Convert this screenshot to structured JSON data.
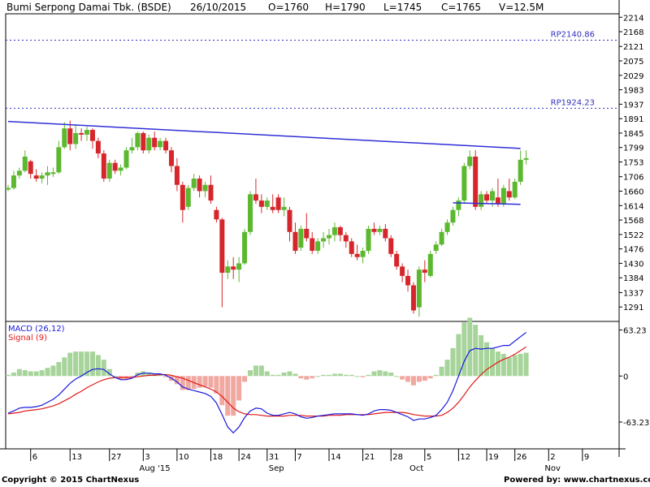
{
  "header": {
    "title": "Bumi Serpong Damai Tbk. (BSDE)",
    "date": "26/10/2015",
    "open": "O=1760",
    "high": "H=1790",
    "low": "L=1745",
    "close": "C=1765",
    "volume": "V=12.5M"
  },
  "footer": {
    "copyright": "Copyright © 2015 ChartNexus",
    "powered": "Powered by: www.chartnexus.com"
  },
  "colors": {
    "up": "#5cb82f",
    "down": "#d6262b",
    "trendline": "#2f2fd6",
    "macd": "#1a1ae0",
    "signal": "#e01a1a",
    "hist_up": "#a7d49a",
    "hist_down": "#f0a8a0",
    "ref_line": "#3030c0"
  },
  "chart_data": [
    {
      "type": "candlestick",
      "title": "Bumi Serpong Damai Tbk. (BSDE)",
      "y_ticks": [
        2214,
        2168,
        2121,
        2075,
        2029,
        1983,
        1937,
        1891,
        1845,
        1799,
        1753,
        1706,
        1660,
        1614,
        1568,
        1522,
        1476,
        1430,
        1384,
        1337,
        1291
      ],
      "ylim": [
        1245,
        2225
      ],
      "ref_lines": [
        {
          "label": "RP2140.86",
          "value": 2140.86
        },
        {
          "label": "RP1924.23",
          "value": 1924.23
        }
      ],
      "trendlines": [
        {
          "from": [
            0,
            1882
          ],
          "to": [
            91,
            1796
          ]
        },
        {
          "from": [
            79,
            1623
          ],
          "to": [
            91,
            1618
          ]
        }
      ],
      "x_ticks": [
        {
          "label": "6",
          "index": 4
        },
        {
          "label": "13",
          "index": 11
        },
        {
          "label": "27",
          "index": 18
        },
        {
          "label": "3",
          "index": 24
        },
        {
          "label": "10",
          "index": 30
        },
        {
          "label": "18",
          "index": 36
        },
        {
          "label": "24",
          "index": 41
        },
        {
          "label": "31",
          "index": 46
        },
        {
          "label": "7",
          "index": 51
        },
        {
          "label": "14",
          "index": 57
        },
        {
          "label": "21",
          "index": 63
        },
        {
          "label": "28",
          "index": 68
        },
        {
          "label": "5",
          "index": 74
        },
        {
          "label": "12",
          "index": 80
        },
        {
          "label": "19",
          "index": 85
        },
        {
          "label": "26",
          "index": 90
        },
        {
          "label": "2",
          "index": 96
        },
        {
          "label": "9",
          "index": 102
        }
      ],
      "month_labels": [
        {
          "label": "Aug '15",
          "index": 23
        },
        {
          "label": "Sep",
          "index": 46
        },
        {
          "label": "Oct",
          "index": 71
        },
        {
          "label": "Nov",
          "index": 95
        }
      ],
      "candles": [
        [
          1665,
          1680,
          1660,
          1670
        ],
        [
          1670,
          1725,
          1665,
          1710
        ],
        [
          1710,
          1735,
          1700,
          1725
        ],
        [
          1725,
          1790,
          1720,
          1770
        ],
        [
          1755,
          1760,
          1700,
          1715
        ],
        [
          1710,
          1730,
          1690,
          1700
        ],
        [
          1700,
          1720,
          1685,
          1710
        ],
        [
          1710,
          1740,
          1680,
          1720
        ],
        [
          1715,
          1735,
          1705,
          1720
        ],
        [
          1720,
          1820,
          1715,
          1800
        ],
        [
          1800,
          1880,
          1795,
          1860
        ],
        [
          1860,
          1885,
          1790,
          1810
        ],
        [
          1810,
          1870,
          1795,
          1845
        ],
        [
          1845,
          1860,
          1820,
          1840
        ],
        [
          1840,
          1865,
          1820,
          1855
        ],
        [
          1855,
          1860,
          1795,
          1820
        ],
        [
          1820,
          1830,
          1765,
          1780
        ],
        [
          1780,
          1790,
          1690,
          1700
        ],
        [
          1700,
          1760,
          1690,
          1750
        ],
        [
          1750,
          1760,
          1715,
          1725
        ],
        [
          1725,
          1745,
          1710,
          1735
        ],
        [
          1735,
          1800,
          1730,
          1790
        ],
        [
          1790,
          1830,
          1780,
          1800
        ],
        [
          1800,
          1850,
          1790,
          1845
        ],
        [
          1845,
          1850,
          1780,
          1790
        ],
        [
          1790,
          1840,
          1780,
          1830
        ],
        [
          1830,
          1850,
          1790,
          1800
        ],
        [
          1800,
          1830,
          1790,
          1820
        ],
        [
          1820,
          1830,
          1780,
          1790
        ],
        [
          1790,
          1800,
          1720,
          1740
        ],
        [
          1740,
          1765,
          1660,
          1680
        ],
        [
          1680,
          1690,
          1560,
          1600
        ],
        [
          1610,
          1680,
          1600,
          1670
        ],
        [
          1670,
          1715,
          1660,
          1700
        ],
        [
          1700,
          1710,
          1640,
          1660
        ],
        [
          1660,
          1690,
          1640,
          1680
        ],
        [
          1680,
          1710,
          1620,
          1630
        ],
        [
          1600,
          1610,
          1560,
          1570
        ],
        [
          1570,
          1575,
          1290,
          1400
        ],
        [
          1400,
          1440,
          1380,
          1420
        ],
        [
          1420,
          1450,
          1380,
          1410
        ],
        [
          1410,
          1450,
          1370,
          1430
        ],
        [
          1430,
          1540,
          1425,
          1530
        ],
        [
          1530,
          1660,
          1520,
          1650
        ],
        [
          1650,
          1700,
          1620,
          1630
        ],
        [
          1630,
          1650,
          1590,
          1610
        ],
        [
          1610,
          1640,
          1600,
          1630
        ],
        [
          1610,
          1650,
          1590,
          1600
        ],
        [
          1640,
          1650,
          1590,
          1600
        ],
        [
          1600,
          1640,
          1580,
          1610
        ],
        [
          1600,
          1610,
          1500,
          1530
        ],
        [
          1530,
          1560,
          1460,
          1470
        ],
        [
          1480,
          1550,
          1470,
          1540
        ],
        [
          1540,
          1590,
          1500,
          1510
        ],
        [
          1510,
          1530,
          1460,
          1470
        ],
        [
          1470,
          1510,
          1460,
          1500
        ],
        [
          1500,
          1530,
          1480,
          1510
        ],
        [
          1510,
          1540,
          1490,
          1520
        ],
        [
          1520,
          1560,
          1500,
          1545
        ],
        [
          1545,
          1550,
          1500,
          1520
        ],
        [
          1520,
          1530,
          1480,
          1500
        ],
        [
          1500,
          1510,
          1450,
          1460
        ],
        [
          1460,
          1490,
          1440,
          1450
        ],
        [
          1450,
          1480,
          1430,
          1470
        ],
        [
          1470,
          1550,
          1460,
          1540
        ],
        [
          1540,
          1560,
          1520,
          1530
        ],
        [
          1530,
          1550,
          1520,
          1540
        ],
        [
          1540,
          1555,
          1500,
          1510
        ],
        [
          1510,
          1520,
          1450,
          1460
        ],
        [
          1460,
          1470,
          1410,
          1420
        ],
        [
          1420,
          1430,
          1370,
          1390
        ],
        [
          1390,
          1410,
          1340,
          1360
        ],
        [
          1360,
          1370,
          1270,
          1280
        ],
        [
          1290,
          1420,
          1260,
          1410
        ],
        [
          1410,
          1440,
          1370,
          1400
        ],
        [
          1390,
          1470,
          1385,
          1460
        ],
        [
          1470,
          1500,
          1460,
          1490
        ],
        [
          1490,
          1540,
          1485,
          1530
        ],
        [
          1530,
          1570,
          1520,
          1560
        ],
        [
          1560,
          1610,
          1550,
          1600
        ],
        [
          1600,
          1640,
          1580,
          1630
        ],
        [
          1630,
          1750,
          1620,
          1740
        ],
        [
          1740,
          1790,
          1730,
          1770
        ],
        [
          1770,
          1790,
          1600,
          1610
        ],
        [
          1610,
          1660,
          1600,
          1650
        ],
        [
          1650,
          1660,
          1620,
          1630
        ],
        [
          1630,
          1670,
          1610,
          1660
        ],
        [
          1640,
          1700,
          1610,
          1620
        ],
        [
          1620,
          1680,
          1610,
          1670
        ],
        [
          1660,
          1700,
          1630,
          1640
        ],
        [
          1640,
          1700,
          1635,
          1690
        ],
        [
          1690,
          1790,
          1680,
          1760
        ],
        [
          1760,
          1790,
          1745,
          1765
        ]
      ]
    },
    {
      "type": "line",
      "title": "MACD (26,12)",
      "signal_title": "Signal (9)",
      "y_ticks": [
        63.23,
        0,
        -63.23
      ],
      "ylim": [
        -100,
        75
      ],
      "series": [
        {
          "name": "MACD (26,12)",
          "values": [
            -51,
            -48,
            -44,
            -43,
            -43,
            -42,
            -40,
            -36,
            -32,
            -26,
            -18,
            -10,
            -4,
            0,
            5,
            9,
            10,
            9,
            3,
            -2,
            -5,
            -5,
            -3,
            2,
            4,
            4,
            3,
            3,
            1,
            -3,
            -8,
            -15,
            -18,
            -20,
            -22,
            -24,
            -28,
            -37,
            -53,
            -70,
            -78,
            -70,
            -57,
            -48,
            -44,
            -45,
            -51,
            -54,
            -54,
            -52,
            -50,
            -52,
            -56,
            -58,
            -57,
            -55,
            -54,
            -53,
            -52,
            -52,
            -52,
            -52,
            -53,
            -54,
            -52,
            -48,
            -46,
            -46,
            -47,
            -50,
            -53,
            -56,
            -61,
            -59,
            -59,
            -57,
            -54,
            -46,
            -36,
            -20,
            0,
            20,
            35,
            38,
            37,
            38,
            38,
            40,
            42,
            42,
            48,
            54,
            60
          ]
        },
        {
          "name": "Signal (9)",
          "values": [
            -52,
            -51,
            -50,
            -48,
            -47,
            -46,
            -45,
            -43,
            -41,
            -38,
            -34,
            -30,
            -25,
            -21,
            -16,
            -12,
            -8,
            -5,
            -3,
            -2,
            -2,
            -2,
            -2,
            -1,
            0,
            1,
            1,
            2,
            2,
            1,
            -1,
            -3,
            -6,
            -9,
            -12,
            -15,
            -18,
            -22,
            -28,
            -36,
            -44,
            -49,
            -52,
            -53,
            -53,
            -54,
            -55,
            -55,
            -55,
            -55,
            -54,
            -54,
            -54,
            -55,
            -55,
            -55,
            -55,
            -54,
            -54,
            -54,
            -53,
            -53,
            -53,
            -53,
            -53,
            -52,
            -51,
            -50,
            -50,
            -50,
            -50,
            -51,
            -53,
            -54,
            -55,
            -55,
            -55,
            -54,
            -50,
            -44,
            -36,
            -26,
            -15,
            -6,
            2,
            9,
            14,
            19,
            23,
            26,
            30,
            35,
            40
          ]
        }
      ]
    }
  ]
}
